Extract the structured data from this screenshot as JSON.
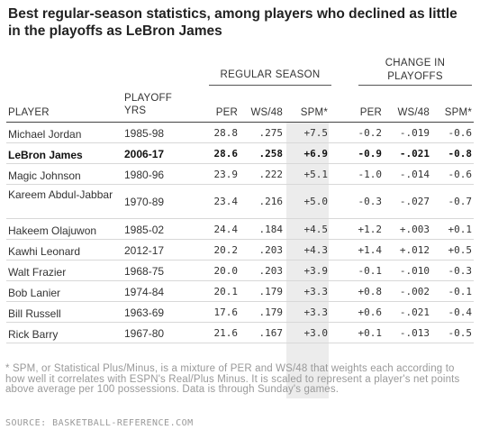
{
  "title": "Best regular-season statistics, among players who declined as little in the playoffs as LeBron James",
  "group_headers": {
    "regular_season": "REGULAR SEASON",
    "change_in_playoffs": "CHANGE IN PLAYOFFS"
  },
  "columns": {
    "player": "PLAYER",
    "playoff_yrs": "PLAYOFF YRS",
    "per": "PER",
    "ws48": "WS/48",
    "spm": "SPM*",
    "chg_per": "PER",
    "chg_ws48": "WS/48",
    "chg_spm": "SPM*"
  },
  "rows": [
    {
      "player": "Michael Jordan",
      "yrs": "1985-98",
      "per": "28.8",
      "ws48": ".275",
      "spm": "+7.5",
      "chg_per": "-0.2",
      "chg_ws48": "-.019",
      "chg_spm": "-0.6",
      "highlight": false
    },
    {
      "player": "LeBron James",
      "yrs": "2006-17",
      "per": "28.6",
      "ws48": ".258",
      "spm": "+6.9",
      "chg_per": "-0.9",
      "chg_ws48": "-.021",
      "chg_spm": "-0.8",
      "highlight": true
    },
    {
      "player": "Magic Johnson",
      "yrs": "1980-96",
      "per": "23.9",
      "ws48": ".222",
      "spm": "+5.1",
      "chg_per": "-1.0",
      "chg_ws48": "-.014",
      "chg_spm": "-0.6",
      "highlight": false
    },
    {
      "player": "Kareem Abdul-Jabbar",
      "yrs": "1970-89",
      "per": "23.4",
      "ws48": ".216",
      "spm": "+5.0",
      "chg_per": "-0.3",
      "chg_ws48": "-.027",
      "chg_spm": "-0.7",
      "highlight": false
    },
    {
      "player": "Hakeem Olajuwon",
      "yrs": "1985-02",
      "per": "24.4",
      "ws48": ".184",
      "spm": "+4.5",
      "chg_per": "+1.2",
      "chg_ws48": "+.003",
      "chg_spm": "+0.1",
      "highlight": false
    },
    {
      "player": "Kawhi Leonard",
      "yrs": "2012-17",
      "per": "20.2",
      "ws48": ".203",
      "spm": "+4.3",
      "chg_per": "+1.4",
      "chg_ws48": "+.012",
      "chg_spm": "+0.5",
      "highlight": false
    },
    {
      "player": "Walt Frazier",
      "yrs": "1968-75",
      "per": "20.0",
      "ws48": ".203",
      "spm": "+3.9",
      "chg_per": "-0.1",
      "chg_ws48": "-.010",
      "chg_spm": "-0.3",
      "highlight": false
    },
    {
      "player": "Bob Lanier",
      "yrs": "1974-84",
      "per": "20.1",
      "ws48": ".179",
      "spm": "+3.3",
      "chg_per": "+0.8",
      "chg_ws48": "-.002",
      "chg_spm": "-0.1",
      "highlight": false
    },
    {
      "player": "Bill Russell",
      "yrs": "1963-69",
      "per": "17.6",
      "ws48": ".179",
      "spm": "+3.3",
      "chg_per": "+0.6",
      "chg_ws48": "-.021",
      "chg_spm": "-0.4",
      "highlight": false
    },
    {
      "player": "Rick Barry",
      "yrs": "1967-80",
      "per": "21.6",
      "ws48": ".167",
      "spm": "+3.0",
      "chg_per": "+0.1",
      "chg_ws48": "-.013",
      "chg_spm": "-0.5",
      "highlight": false
    }
  ],
  "footnote": "* SPM, or Statistical Plus/Minus, is a mixture of PER and WS/48 that weights each according to how well it correlates with ESPN's Real/Plus Minus. It is scaled to represent a player's net points above average per 100 possessions. Data is through Sunday's games.",
  "source": "SOURCE: BASKETBALL-REFERENCE.COM"
}
